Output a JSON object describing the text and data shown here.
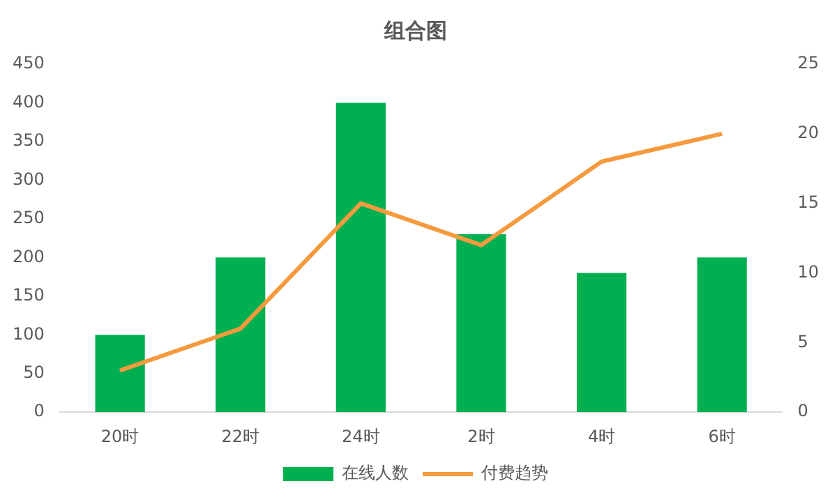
{
  "chart_data": {
    "type": "bar",
    "title": "组合图",
    "categories": [
      "20时",
      "22时",
      "24时",
      "2时",
      "4时",
      "6时"
    ],
    "series": [
      {
        "name": "在线人数",
        "color": "#00b050",
        "values": [
          100,
          200,
          400,
          230,
          180,
          200
        ]
      },
      {
        "name": "付费趋势",
        "type": "line",
        "axis": "y2",
        "color": "#f59a3e",
        "values": [
          3,
          6,
          15,
          12,
          18,
          20
        ]
      }
    ],
    "ylim": [
      0,
      450
    ],
    "yticks": [
      0,
      50,
      100,
      150,
      200,
      250,
      300,
      350,
      400,
      450
    ],
    "y2lim": [
      0,
      25
    ],
    "y2ticks": [
      0,
      5,
      10,
      15,
      20,
      25
    ],
    "grid": false,
    "legend": "bottom",
    "marker": "none"
  }
}
